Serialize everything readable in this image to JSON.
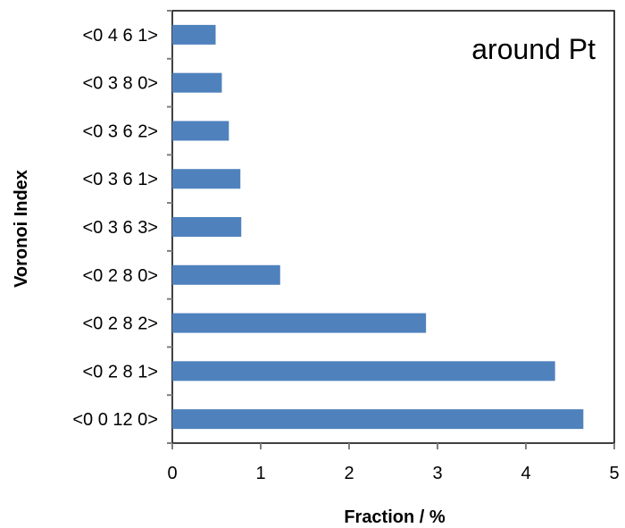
{
  "chart_data": {
    "type": "bar",
    "orientation": "horizontal",
    "categories": [
      "<0 4 6 1>",
      "<0 3 8 0>",
      "<0 3 6 2>",
      "<0 3 6 1>",
      "<0 3 6 3>",
      "<0 2 8 0>",
      "<0 2 8 2>",
      "<0 2 8 1>",
      "<0 0 12 0>"
    ],
    "values": [
      0.49,
      0.56,
      0.64,
      0.77,
      0.78,
      1.22,
      2.87,
      4.33,
      4.65
    ],
    "xlabel": "Fraction / %",
    "ylabel": "Voronoi Index",
    "annotation": "around Pt",
    "xlim": [
      0,
      5
    ],
    "xticks": [
      "0",
      "1",
      "2",
      "3",
      "4",
      "5"
    ],
    "grid": false,
    "legend": "none",
    "bar_color": "#4f81bd",
    "axis_color": "#7f7f7f"
  }
}
